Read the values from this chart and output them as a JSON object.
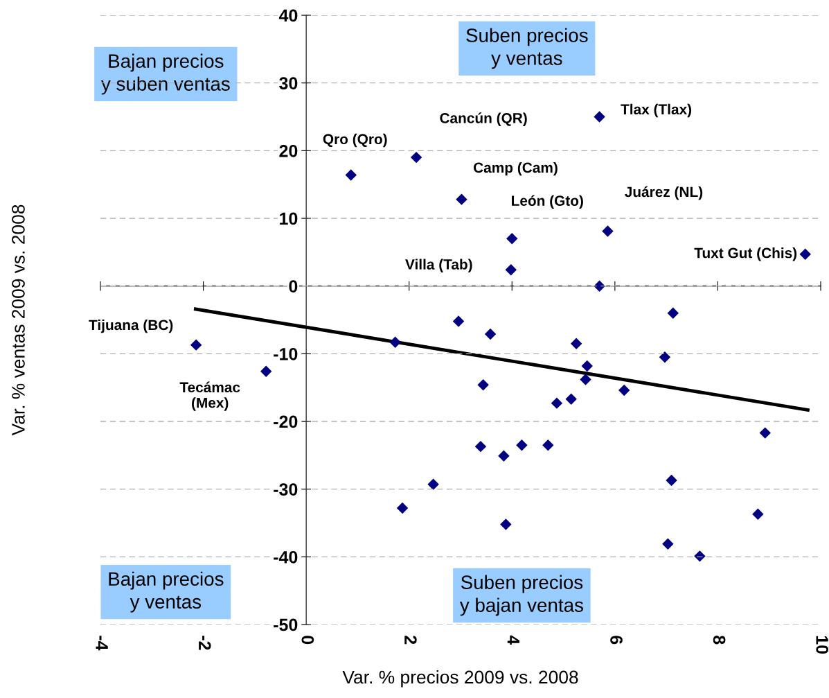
{
  "chart_data": {
    "type": "scatter",
    "xlabel": "Var. % precios 2009 vs. 2008",
    "ylabel": "Var. % ventas 2009 vs. 2008",
    "xlim": [
      -4,
      10
    ],
    "xticks": [
      -4,
      -2,
      0,
      2,
      4,
      6,
      8,
      10
    ],
    "ylim": [
      -50,
      40
    ],
    "yticks": [
      -50,
      -40,
      -30,
      -20,
      -10,
      0,
      10,
      20,
      30,
      40
    ],
    "grid": "y",
    "legend": false,
    "series": [
      {
        "marker": "diamond",
        "color": "#000080",
        "x": [
          5.7,
          0.87,
          2.14,
          3.02,
          4.0,
          5.86,
          3.98,
          9.7,
          5.7,
          -2.14,
          -0.78,
          1.73,
          2.96,
          3.58,
          3.44,
          3.39,
          3.84,
          4.19,
          4.7,
          2.47,
          1.87,
          3.88,
          7.13,
          5.25,
          6.97,
          5.46,
          5.43,
          6.18,
          4.87,
          5.15,
          8.92,
          7.1,
          8.78,
          7.03,
          7.65
        ],
        "values": [
          25.0,
          16.4,
          19.0,
          12.8,
          7.0,
          8.1,
          2.4,
          4.7,
          0.0,
          -8.7,
          -12.6,
          -8.3,
          -5.2,
          -7.1,
          -14.6,
          -23.7,
          -25.1,
          -23.5,
          -23.5,
          -29.3,
          -32.8,
          -35.2,
          -4.0,
          -8.5,
          -10.5,
          -11.8,
          -13.8,
          -15.4,
          -17.3,
          -16.7,
          -21.7,
          -28.7,
          -33.7,
          -38.1,
          -39.9
        ]
      },
      {
        "type": "line",
        "color": "#000000",
        "x": [
          -2.15,
          9.75
        ],
        "values": [
          -3.4,
          -18.3
        ]
      }
    ],
    "annotations": [
      "Bajan precios\ny suben ventas",
      "Suben precios\ny ventas",
      "Bajan precios\ny ventas",
      "Suben precios\ny bajan ventas",
      {
        "text": "Tlax (Tlax)",
        "x": 5.7,
        "y": 25.0
      },
      {
        "text": "Qro (Qro)",
        "x": 0.87,
        "y": 16.4
      },
      {
        "text": "Cancún (QR)",
        "x": 2.14,
        "y": 19.0
      },
      {
        "text": "Camp (Cam)",
        "x": 3.02,
        "y": 12.8
      },
      {
        "text": "León (Gto)",
        "x": 4.0,
        "y": 7.0
      },
      {
        "text": "Juárez (NL)",
        "x": 5.86,
        "y": 8.1
      },
      {
        "text": "Villa (Tab)",
        "x": 3.98,
        "y": 2.4
      },
      {
        "text": "Tuxt Gut (Chis)",
        "x": 9.7,
        "y": 4.7
      },
      {
        "text": "Tijuana (BC)",
        "x": -2.14,
        "y": -8.7
      },
      {
        "text": "Tecámac\n(Mex)",
        "x": -0.78,
        "y": -12.6
      }
    ]
  }
}
